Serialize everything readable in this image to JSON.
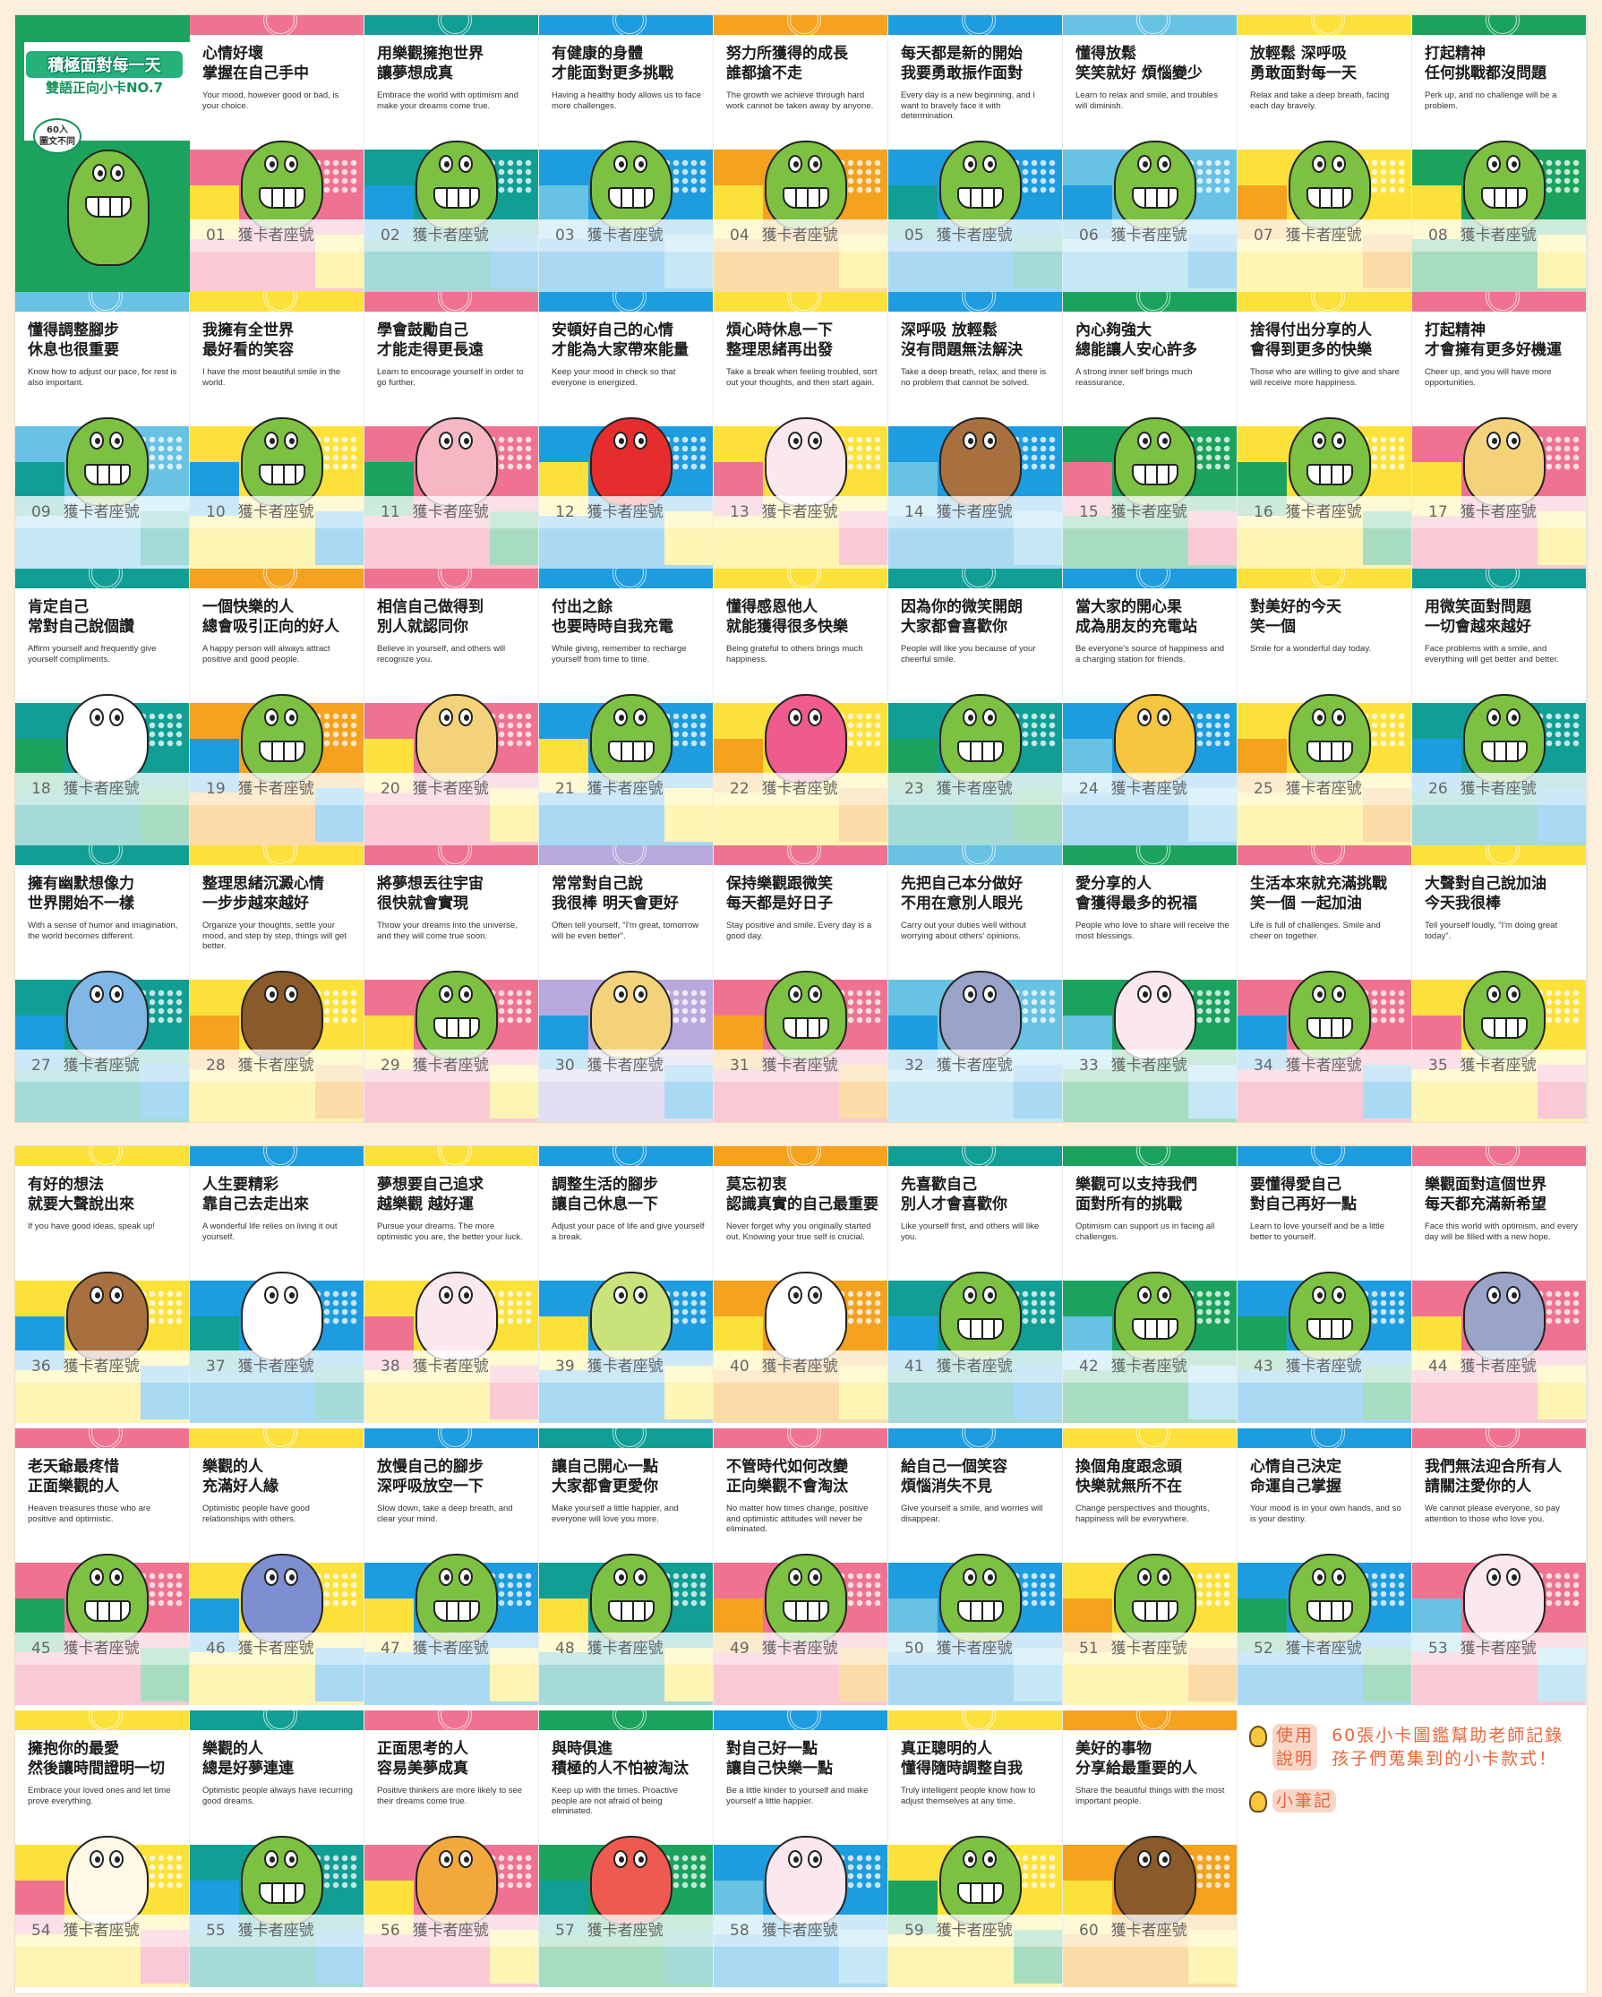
{
  "cover": {
    "title": "積極面對每一天",
    "subtitle": "雙語正向小卡NO.7",
    "badge_1": "60入",
    "badge_2": "圖文不同",
    "color": "#1ba35e"
  },
  "footer_label": "獲卡者座號",
  "note": {
    "usage_tag_1": "使用",
    "usage_tag_2": "說明",
    "usage_line_1": "60張小卡圖鑑幫助老師記錄",
    "usage_line_2": "孩子們蒐集到的小卡款式！",
    "memo_tag": "小筆記"
  },
  "cards": [
    {
      "no": "01",
      "title": [
        "心情好壞",
        "掌握在自己手中"
      ],
      "text": "Your mood, however good or bad, is your choice.",
      "colors": [
        "#ef7391",
        "#fde13b"
      ],
      "character": "crocodile"
    },
    {
      "no": "02",
      "title": [
        "用樂觀擁抱世界",
        "讓夢想成真"
      ],
      "text": "Embrace the world with optimism and make your dreams come true.",
      "colors": [
        "#119f95",
        "#1e9ce0"
      ],
      "character": "crocodile"
    },
    {
      "no": "03",
      "title": [
        "有健康的身體",
        "才能面對更多挑戰"
      ],
      "text": "Having a healthy body allows us to face more challenges.",
      "colors": [
        "#1e9ce0",
        "#67c2e3"
      ],
      "character": "crocodile"
    },
    {
      "no": "04",
      "title": [
        "努力所獲得的成長",
        "誰都搶不走"
      ],
      "text": "The growth we achieve through hard work cannot be taken away by anyone.",
      "colors": [
        "#f5a21f",
        "#fde13b"
      ],
      "character": "crocodile"
    },
    {
      "no": "05",
      "title": [
        "每天都是新的開始",
        "我要勇敢振作面對"
      ],
      "text": "Every day is a new beginning, and I want to bravely face it with determination.",
      "colors": [
        "#1e9ce0",
        "#119f95"
      ],
      "character": "crocodile"
    },
    {
      "no": "06",
      "title": [
        "懂得放鬆",
        "笑笑就好 煩惱變少"
      ],
      "text": "Learn to relax and smile, and troubles will diminish.",
      "colors": [
        "#67c2e3",
        "#1e9ce0"
      ],
      "character": "crocodile"
    },
    {
      "no": "07",
      "title": [
        "放輕鬆 深呼吸",
        "勇敢面對每一天"
      ],
      "text": "Relax and take a deep breath, facing each day bravely.",
      "colors": [
        "#fde13b",
        "#f5a21f"
      ],
      "character": "crocodile"
    },
    {
      "no": "08",
      "title": [
        "打起精神",
        "任何挑戰都沒問題"
      ],
      "text": "Perk up, and no challenge will be a problem.",
      "colors": [
        "#1ba35e",
        "#fde13b"
      ],
      "character": "crocodile"
    },
    {
      "no": "09",
      "title": [
        "懂得調整腳步",
        "休息也很重要"
      ],
      "text": "Know how to adjust our pace, for rest is also important.",
      "colors": [
        "#67c2e3",
        "#119f95"
      ],
      "character": "crocodile"
    },
    {
      "no": "10",
      "title": [
        "我擁有全世界",
        "最好看的笑容"
      ],
      "text": "I have the most beautiful smile in the world.",
      "colors": [
        "#fde13b",
        "#1e9ce0"
      ],
      "character": "crocodile"
    },
    {
      "no": "11",
      "title": [
        "學會鼓勵自己",
        "才能走得更長遠"
      ],
      "text": "Learn to encourage yourself in order to go further.",
      "colors": [
        "#ef7391",
        "#1ba35e"
      ],
      "character": "pig"
    },
    {
      "no": "12",
      "title": [
        "安頓好自己的心情",
        "才能為大家帶來能量"
      ],
      "text": "Keep your mood in check so that everyone is energized.",
      "colors": [
        "#1e9ce0",
        "#fde13b"
      ],
      "character": "apple"
    },
    {
      "no": "13",
      "title": [
        "煩心時休息一下",
        "整理思緒再出發"
      ],
      "text": "Take a break when feeling troubled, sort out your thoughts, and then start again.",
      "colors": [
        "#fde13b",
        "#ef7391"
      ],
      "character": "rabbit"
    },
    {
      "no": "14",
      "title": [
        "深呼吸 放輕鬆",
        "沒有問題無法解決"
      ],
      "text": "Take a deep breath, relax, and there is no problem that cannot be solved.",
      "colors": [
        "#1e9ce0",
        "#67c2e3"
      ],
      "character": "monkey"
    },
    {
      "no": "15",
      "title": [
        "內心夠強大",
        "總能讓人安心許多"
      ],
      "text": "A strong inner self brings much reassurance.",
      "colors": [
        "#1ba35e",
        "#ef7391"
      ],
      "character": "crocodile"
    },
    {
      "no": "16",
      "title": [
        "捨得付出分享的人",
        "會得到更多的快樂"
      ],
      "text": "Those who are willing to give and share will receive more happiness.",
      "colors": [
        "#fde13b",
        "#1ba35e"
      ],
      "character": "crocodile"
    },
    {
      "no": "17",
      "title": [
        "打起精神",
        "才會擁有更多好機運"
      ],
      "text": "Cheer up, and you will have more opportunities.",
      "colors": [
        "#ef7391",
        "#fde13b"
      ],
      "character": "dog"
    },
    {
      "no": "18",
      "title": [
        "肯定自己",
        "常對自己說個讚"
      ],
      "text": "Affirm yourself and frequently give yourself compliments.",
      "colors": [
        "#119f95",
        "#1ba35e"
      ],
      "character": "panda"
    },
    {
      "no": "19",
      "title": [
        "一個快樂的人",
        "總會吸引正向的好人"
      ],
      "text": "A happy person will always attract positive and good people.",
      "colors": [
        "#f5a21f",
        "#1e9ce0"
      ],
      "character": "crocodile"
    },
    {
      "no": "20",
      "title": [
        "相信自己做得到",
        "別人就認同你"
      ],
      "text": "Believe in yourself, and others will recognize you.",
      "colors": [
        "#ef7391",
        "#fde13b"
      ],
      "character": "dog"
    },
    {
      "no": "21",
      "title": [
        "付出之餘",
        "也要時時自我充電"
      ],
      "text": "While giving, remember to recharge yourself from time to time.",
      "colors": [
        "#1e9ce0",
        "#fde13b"
      ],
      "character": "crocodile"
    },
    {
      "no": "22",
      "title": [
        "懂得感恩他人",
        "就能獲得很多快樂"
      ],
      "text": "Being grateful to others brings much happiness.",
      "colors": [
        "#fde13b",
        "#f5a21f"
      ],
      "character": "fish"
    },
    {
      "no": "23",
      "title": [
        "因為你的微笑開朗",
        "大家都會喜歡你"
      ],
      "text": "People will like you because of your cheerful smile.",
      "colors": [
        "#119f95",
        "#1ba35e"
      ],
      "character": "crocodile"
    },
    {
      "no": "24",
      "title": [
        "當大家的開心果",
        "成為朋友的充電站"
      ],
      "text": "Be everyone's source of happiness and a charging station for friends.",
      "colors": [
        "#1e9ce0",
        "#67c2e3"
      ],
      "character": "giraffe"
    },
    {
      "no": "25",
      "title": [
        "對美好的今天",
        "笑一個"
      ],
      "text": "Smile for a wonderful day today.",
      "colors": [
        "#fde13b",
        "#f5a21f"
      ],
      "character": "crocodile"
    },
    {
      "no": "26",
      "title": [
        "用微笑面對問題",
        "一切會越來越好"
      ],
      "text": "Face problems with a smile, and everything will get better and better.",
      "colors": [
        "#119f95",
        "#1e9ce0"
      ],
      "character": "crocodile"
    },
    {
      "no": "27",
      "title": [
        "擁有幽默想像力",
        "世界開始不一樣"
      ],
      "text": "With a sense of humor and imagination, the world becomes different.",
      "colors": [
        "#119f95",
        "#1e9ce0"
      ],
      "character": "bird"
    },
    {
      "no": "28",
      "title": [
        "整理思緒沉澱心情",
        "一步步越來越好"
      ],
      "text": "Organize your thoughts, settle your mood, and step by step, things will get better.",
      "colors": [
        "#fde13b",
        "#f5a21f"
      ],
      "character": "horse"
    },
    {
      "no": "29",
      "title": [
        "將夢想丟往宇宙",
        "很快就會實現"
      ],
      "text": "Throw your dreams into the universe, and they will come true soon.",
      "colors": [
        "#ef7391",
        "#fde13b"
      ],
      "character": "crocodile"
    },
    {
      "no": "30",
      "title": [
        "常常對自己說",
        "我很棒 明天會更好"
      ],
      "text": "Often tell yourself, \"I'm great, tomorrow will be even better\".",
      "colors": [
        "#b7a9dc",
        "#1e9ce0"
      ],
      "character": "dog"
    },
    {
      "no": "31",
      "title": [
        "保持樂觀跟微笑",
        "每天都是好日子"
      ],
      "text": "Stay positive and smile. Every day is a good day.",
      "colors": [
        "#ef7391",
        "#f5a21f"
      ],
      "character": "crocodile"
    },
    {
      "no": "32",
      "title": [
        "先把自己本分做好",
        "不用在意別人眼光"
      ],
      "text": "Carry out your duties well without worrying about others' opinions.",
      "colors": [
        "#67c2e3",
        "#1e9ce0"
      ],
      "character": "hippo"
    },
    {
      "no": "33",
      "title": [
        "愛分享的人",
        "會獲得最多的祝福"
      ],
      "text": "People who love to share will receive the most blessings.",
      "colors": [
        "#1ba35e",
        "#67c2e3"
      ],
      "character": "rabbit"
    },
    {
      "no": "34",
      "title": [
        "生活本來就充滿挑戰",
        "笑一個 一起加油"
      ],
      "text": "Life is full of challenges. Smile and cheer on together.",
      "colors": [
        "#ef7391",
        "#1e9ce0"
      ],
      "character": "crocodile"
    },
    {
      "no": "35",
      "title": [
        "大聲對自己說加油",
        "今天我很棒"
      ],
      "text": "Tell yourself loudly, \"I'm doing great today\".",
      "colors": [
        "#fde13b",
        "#ef7391"
      ],
      "character": "crocodile"
    },
    {
      "no": "36",
      "title": [
        "有好的想法",
        "就要大聲說出來"
      ],
      "text": "If you have good ideas, speak up!",
      "colors": [
        "#fde13b",
        "#1e9ce0"
      ],
      "character": "monkey"
    },
    {
      "no": "37",
      "title": [
        "人生要精彩",
        "靠自己去走出來"
      ],
      "text": "A wonderful life relies on living it out yourself.",
      "colors": [
        "#1e9ce0",
        "#119f95"
      ],
      "character": "panda"
    },
    {
      "no": "38",
      "title": [
        "夢想要自己追求",
        "越樂觀 越好運"
      ],
      "text": "Pursue your dreams. The more optimistic you are, the better your luck.",
      "colors": [
        "#fde13b",
        "#ef7391"
      ],
      "character": "rabbit"
    },
    {
      "no": "39",
      "title": [
        "調整生活的腳步",
        "讓自己休息一下"
      ],
      "text": "Adjust your pace of life and give yourself a break.",
      "colors": [
        "#1e9ce0",
        "#fde13b"
      ],
      "character": "friends"
    },
    {
      "no": "40",
      "title": [
        "莫忘初衷",
        "認識真實的自己最重要"
      ],
      "text": "Never forget why you originally started out. Knowing your true self is crucial.",
      "colors": [
        "#f5a21f",
        "#fde13b"
      ],
      "character": "panda"
    },
    {
      "no": "41",
      "title": [
        "先喜歡自己",
        "別人才會喜歡你"
      ],
      "text": "Like yourself first, and others will like you.",
      "colors": [
        "#119f95",
        "#1e9ce0"
      ],
      "character": "crocodile"
    },
    {
      "no": "42",
      "title": [
        "樂觀可以支持我們",
        "面對所有的挑戰"
      ],
      "text": "Optimism can support us in facing all challenges.",
      "colors": [
        "#1ba35e",
        "#67c2e3"
      ],
      "character": "crocodile"
    },
    {
      "no": "43",
      "title": [
        "要懂得愛自己",
        "對自己再好一點"
      ],
      "text": "Learn to love yourself and be a little better to yourself.",
      "colors": [
        "#1e9ce0",
        "#1ba35e"
      ],
      "character": "crocodile"
    },
    {
      "no": "44",
      "title": [
        "樂觀面對這個世界",
        "每天都充滿新希望"
      ],
      "text": "Face this world with optimism, and every day will be filled with a new hope.",
      "colors": [
        "#ef7391",
        "#fde13b"
      ],
      "character": "hippo"
    },
    {
      "no": "45",
      "title": [
        "老天爺最疼惜",
        "正面樂觀的人"
      ],
      "text": "Heaven treasures those who are positive and optimistic.",
      "colors": [
        "#ef7391",
        "#1ba35e"
      ],
      "character": "frog"
    },
    {
      "no": "46",
      "title": [
        "樂觀的人",
        "充滿好人緣"
      ],
      "text": "Optimistic people have good relationships with others.",
      "colors": [
        "#fde13b",
        "#1e9ce0"
      ],
      "character": "elephant"
    },
    {
      "no": "47",
      "title": [
        "放慢自己的腳步",
        "深呼吸放空一下"
      ],
      "text": "Slow down, take a deep breath, and clear your mind.",
      "colors": [
        "#1e9ce0",
        "#fde13b"
      ],
      "character": "crocodile"
    },
    {
      "no": "48",
      "title": [
        "讓自己開心一點",
        "大家都會更愛你"
      ],
      "text": "Make yourself a little happier, and everyone will love you more.",
      "colors": [
        "#119f95",
        "#fde13b"
      ],
      "character": "crocodile"
    },
    {
      "no": "49",
      "title": [
        "不管時代如何改變",
        "正向樂觀不會淘汰"
      ],
      "text": "No matter how times change, positive and optimistic attitudes will never be eliminated.",
      "colors": [
        "#ef7391",
        "#f5a21f"
      ],
      "character": "crocodile"
    },
    {
      "no": "50",
      "title": [
        "給自己一個笑容",
        "煩惱消失不見"
      ],
      "text": "Give yourself a smile, and worries will disappear.",
      "colors": [
        "#1e9ce0",
        "#67c2e3"
      ],
      "character": "crocodile"
    },
    {
      "no": "51",
      "title": [
        "換個角度跟念頭",
        "快樂就無所不在"
      ],
      "text": "Change perspectives and thoughts, happiness will be everywhere.",
      "colors": [
        "#fde13b",
        "#f5a21f"
      ],
      "character": "crocodile"
    },
    {
      "no": "52",
      "title": [
        "心情自己決定",
        "命運自己掌握"
      ],
      "text": "Your mood is in your own hands, and so is your destiny.",
      "colors": [
        "#1e9ce0",
        "#1ba35e"
      ],
      "character": "crocodile"
    },
    {
      "no": "53",
      "title": [
        "我們無法迎合所有人",
        "請關注愛你的人"
      ],
      "text": "We cannot please everyone, so pay attention to those who love you.",
      "colors": [
        "#ef7391",
        "#67c2e3"
      ],
      "character": "rabbit"
    },
    {
      "no": "54",
      "title": [
        "擁抱你的最愛",
        "然後讓時間證明一切"
      ],
      "text": "Embrace your loved ones and let time prove everything.",
      "colors": [
        "#fde13b",
        "#ef7391"
      ],
      "character": "sheep"
    },
    {
      "no": "55",
      "title": [
        "樂觀的人",
        "總是好夢連連"
      ],
      "text": "Optimistic people always have recurring good dreams.",
      "colors": [
        "#119f95",
        "#1e9ce0"
      ],
      "character": "crocodile"
    },
    {
      "no": "56",
      "title": [
        "正面思考的人",
        "容易美夢成真"
      ],
      "text": "Positive thinkers are more likely to see their dreams come true.",
      "colors": [
        "#ef7391",
        "#fde13b"
      ],
      "character": "lion"
    },
    {
      "no": "57",
      "title": [
        "與時俱進",
        "積極的人不怕被淘汰"
      ],
      "text": "Keep up with the times. Proactive people are not afraid of being eliminated.",
      "colors": [
        "#1ba35e",
        "#119f95"
      ],
      "character": "crab"
    },
    {
      "no": "58",
      "title": [
        "對自己好一點",
        "讓自己快樂一點"
      ],
      "text": "Be a little kinder to yourself and make yourself a little happier.",
      "colors": [
        "#1e9ce0",
        "#67c2e3"
      ],
      "character": "rabbit"
    },
    {
      "no": "59",
      "title": [
        "真正聰明的人",
        "懂得隨時調整自我"
      ],
      "text": "Truly intelligent people know how to adjust themselves at any time.",
      "colors": [
        "#fde13b",
        "#1ba35e"
      ],
      "character": "crocodile"
    },
    {
      "no": "60",
      "title": [
        "美好的事物",
        "分享給最重要的人"
      ],
      "text": "Share the beautiful things with the most important people.",
      "colors": [
        "#f5a21f",
        "#fde13b"
      ],
      "character": "hedgehog"
    }
  ]
}
